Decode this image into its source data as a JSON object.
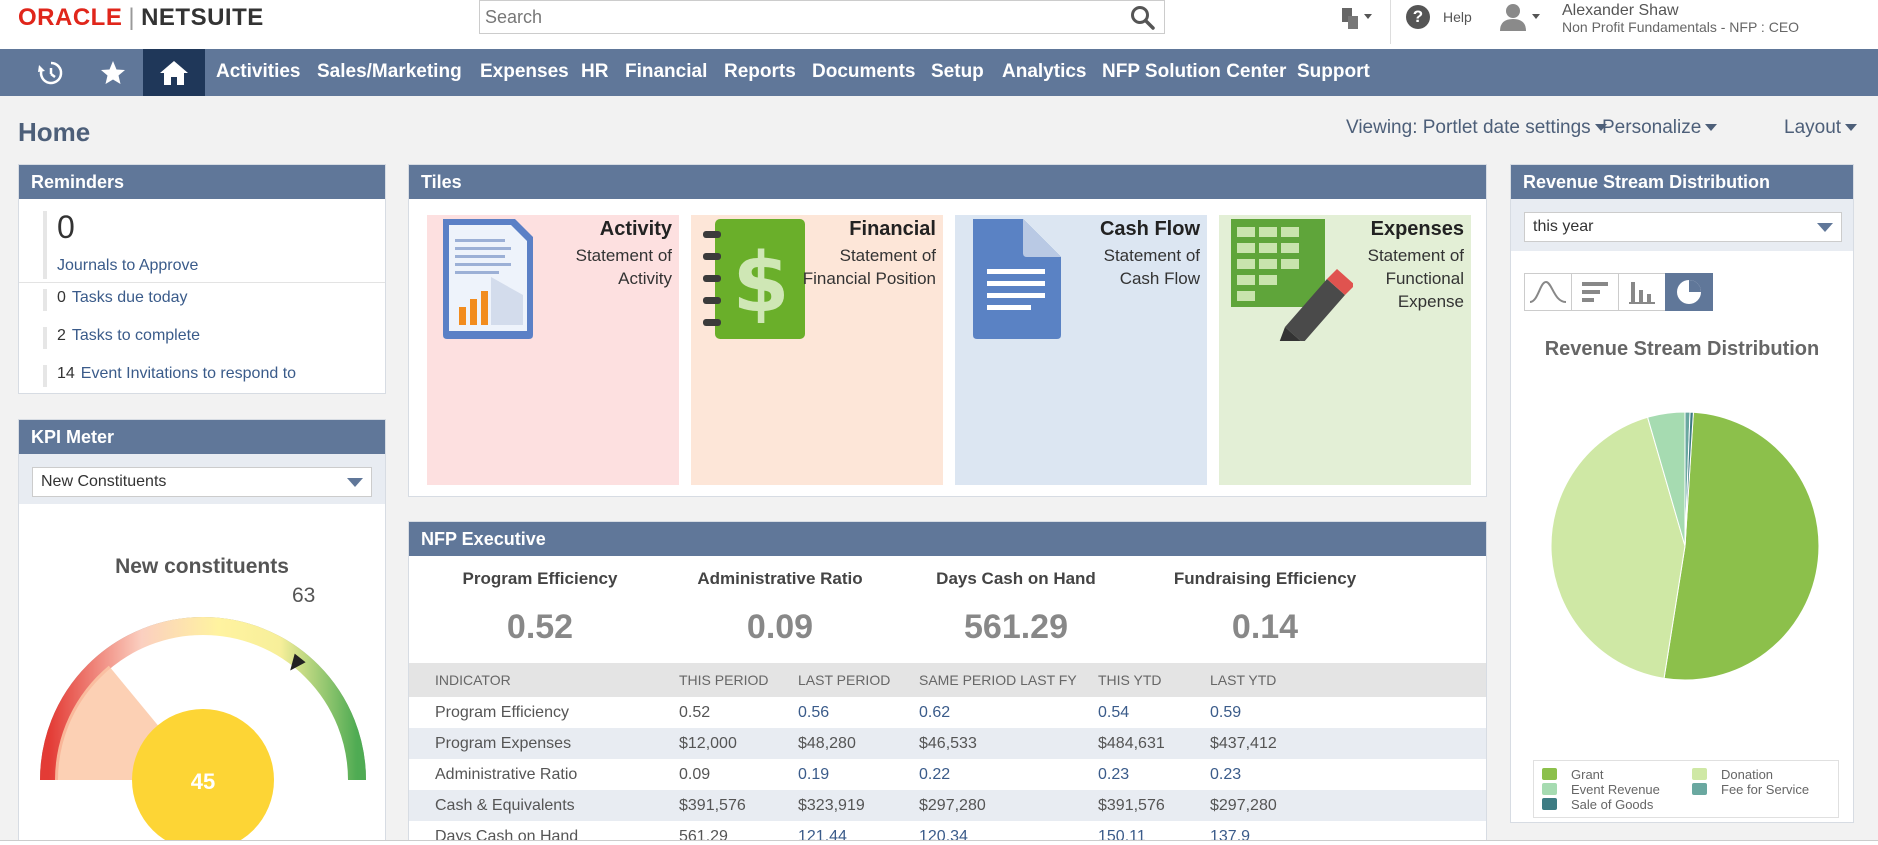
{
  "header": {
    "logo_oracle": "ORACLE",
    "logo_netsuite": "NETSUITE",
    "search_placeholder": "Search",
    "help_label": "Help",
    "user_name": "Alexander Shaw",
    "user_role": "Non Profit Fundamentals - NFP : CEO",
    "icons": [
      "search-icon",
      "tools-icon",
      "help-icon",
      "avatar"
    ]
  },
  "nav": {
    "icons": [
      "recent-icon",
      "star-icon",
      "home-icon"
    ],
    "items": [
      "Activities",
      "Sales/Marketing",
      "Expenses",
      "HR",
      "Financial",
      "Reports",
      "Documents",
      "Setup",
      "Analytics",
      "NFP Solution Center",
      "Support"
    ],
    "bar_color": "#607799",
    "home_active_color": "#1f3759"
  },
  "page": {
    "title": "Home",
    "viewing": "Viewing: Portlet date settings",
    "personalize": "Personalize",
    "layout": "Layout"
  },
  "reminders": {
    "title": "Reminders",
    "featured": {
      "count": "0",
      "label": "Journals to Approve"
    },
    "items": [
      {
        "count": "0",
        "label": "Tasks due today"
      },
      {
        "count": "2",
        "label": "Tasks to complete"
      },
      {
        "count": "14",
        "label": "Event Invitations to respond to"
      }
    ]
  },
  "kpi": {
    "title": "KPI Meter",
    "selected": "New Constituents",
    "chart_title": "New constituents",
    "value": "45",
    "target": "63",
    "gauge_fraction": 0.714
  },
  "tiles": {
    "title": "Tiles",
    "items": [
      {
        "title": "Activity",
        "subtitle": "Statement of Activity",
        "bg": "#fde0e0",
        "icon": "report-document-icon"
      },
      {
        "title": "Financial",
        "subtitle": "Statement of Financial Position",
        "bg": "#fde6d8",
        "icon": "dollar-notebook-icon"
      },
      {
        "title": "Cash Flow",
        "subtitle": "Statement of Cash Flow",
        "bg": "#dce6f2",
        "icon": "document-icon"
      },
      {
        "title": "Expenses",
        "subtitle": "Statement of Functional Expense",
        "bg": "#e3efd6",
        "icon": "spreadsheet-pencil-icon"
      }
    ]
  },
  "exec": {
    "title": "NFP Executive",
    "headline": [
      {
        "label": "Program Efficiency",
        "value": "0.52"
      },
      {
        "label": "Administrative Ratio",
        "value": "0.09"
      },
      {
        "label": "Days Cash on Hand",
        "value": "561.29"
      },
      {
        "label": "Fundraising Efficiency",
        "value": "0.14"
      }
    ],
    "columns": [
      "INDICATOR",
      "THIS PERIOD",
      "LAST PERIOD",
      "SAME PERIOD LAST FY",
      "THIS YTD",
      "LAST YTD"
    ],
    "rows": [
      [
        "Program Efficiency",
        "0.52",
        "0.56",
        "0.62",
        "0.54",
        "0.59"
      ],
      [
        "Program Expenses",
        "$12,000",
        "$48,280",
        "$46,533",
        "$484,631",
        "$437,412"
      ],
      [
        "Administrative Ratio",
        "0.09",
        "0.19",
        "0.22",
        "0.23",
        "0.23"
      ],
      [
        "Cash & Equivalents",
        "$391,576",
        "$323,919",
        "$297,280",
        "$391,576",
        "$297,280"
      ],
      [
        "Days Cash on Hand",
        "561.29",
        "121.44",
        "120.34",
        "150.11",
        "137.9"
      ]
    ]
  },
  "revenue": {
    "title": "Revenue Stream Distribution",
    "period": "this year",
    "chart_tabs": [
      "area-chart-icon",
      "bar-chart-icon",
      "column-chart-icon",
      "pie-chart-icon"
    ],
    "chart_title": "Revenue Stream Distribution",
    "legend": [
      "Grant",
      "Donation",
      "Event Revenue",
      "Fee for Service",
      "Sale of Goods"
    ]
  },
  "chart_data": {
    "type": "pie",
    "title": "Revenue Stream Distribution",
    "categories": [
      "Grant",
      "Donation",
      "Event Revenue",
      "Fee for Service",
      "Sale of Goods"
    ],
    "values": [
      51.5,
      43.0,
      4.5,
      0.6,
      0.4
    ],
    "colors": [
      "#8cc04b",
      "#cfe8a5",
      "#a6dbb1",
      "#6aa8a0",
      "#3d7c83"
    ],
    "legend_position": "bottom"
  }
}
